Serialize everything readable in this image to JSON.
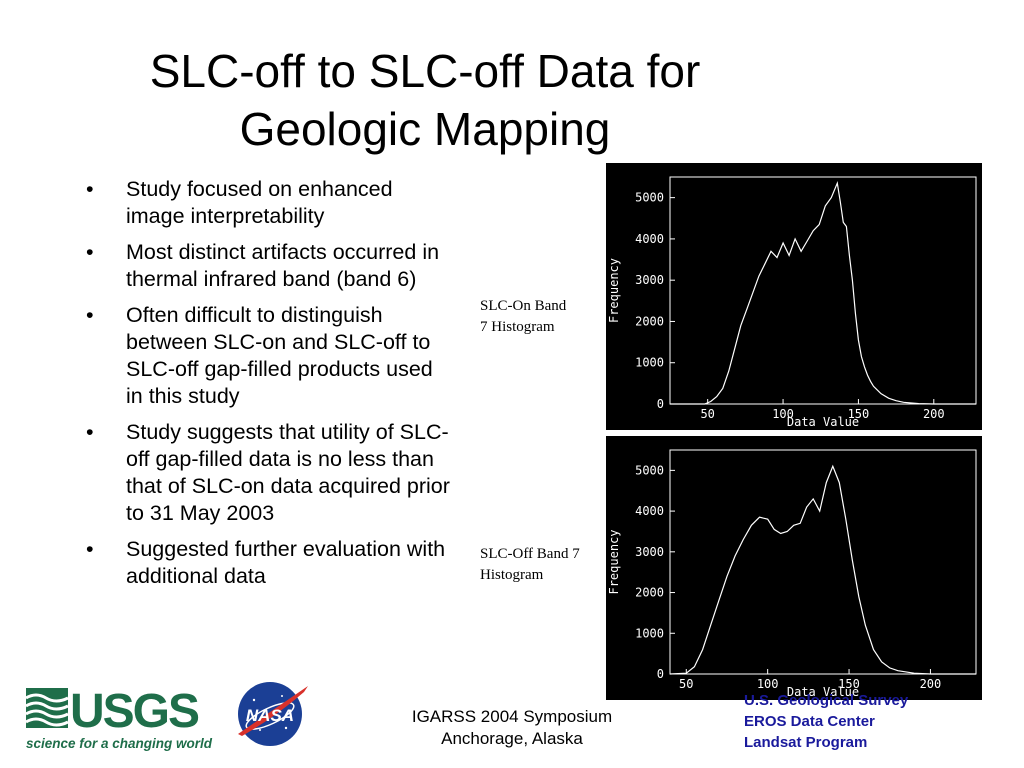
{
  "slide": {
    "title_line1": "SLC-off to SLC-off Data for",
    "title_line2": "Geologic Mapping",
    "bullets": [
      "Study focused on enhanced image interpretability",
      "Most distinct artifacts occurred in thermal infrared band (band 6)",
      "Often difficult to distinguish between SLC-on and SLC-off to SLC-off gap-filled products used in this study",
      "Study suggests that utility of SLC-off gap-filled data is no less than that of SLC-on data acquired prior to 31 May 2003",
      "Suggested further evaluation with additional data"
    ],
    "caption_top_line1": "SLC-On Band",
    "caption_top_line2": "7 Histogram",
    "caption_bottom_line1": "SLC-Off Band 7",
    "caption_bottom_line2": "Histogram",
    "footer_line1": "IGARSS 2004 Symposium",
    "footer_line2": "Anchorage, Alaska",
    "org_line1": "U.S. Geological Survey",
    "org_line2": "EROS Data Center",
    "org_line3": "Landsat Program",
    "usgs_logo_text": "USGS",
    "usgs_tagline": "science for a changing world",
    "nasa_logo_text": "NASA"
  },
  "colors": {
    "org_text": "#1a1a9c",
    "usgs_green": "#1f6e4a",
    "nasa_blue": "#1b3f95",
    "nasa_red": "#d8312b"
  },
  "chart_data": [
    {
      "type": "line",
      "xlabel": "Data Value",
      "ylabel": "Frequency",
      "xticks": [
        50,
        100,
        150,
        200
      ],
      "yticks": [
        0,
        1000,
        2000,
        3000,
        4000,
        5000
      ],
      "xlim": [
        25,
        228
      ],
      "ylim": [
        0,
        5500
      ],
      "grid": false,
      "series": [
        {
          "x": [
            25,
            40,
            48,
            52,
            56,
            60,
            64,
            68,
            72,
            76,
            80,
            84,
            88,
            92,
            96,
            100,
            104,
            108,
            112,
            116,
            120,
            124,
            128,
            132,
            136,
            138,
            140,
            142,
            144,
            146,
            148,
            150,
            152,
            154,
            156,
            158,
            160,
            165,
            170,
            175,
            180,
            190,
            200,
            210,
            220,
            228
          ],
          "y": [
            0,
            0,
            0,
            60,
            180,
            380,
            800,
            1350,
            1900,
            2300,
            2700,
            3100,
            3400,
            3700,
            3550,
            3900,
            3600,
            4000,
            3700,
            3950,
            4200,
            4350,
            4800,
            5000,
            5350,
            4900,
            4400,
            4300,
            3600,
            3000,
            2200,
            1550,
            1150,
            900,
            700,
            550,
            430,
            250,
            140,
            80,
            40,
            10,
            0,
            0,
            0,
            0
          ]
        }
      ]
    },
    {
      "type": "line",
      "xlabel": "Data Value",
      "ylabel": "Frequency",
      "xticks": [
        50,
        100,
        150,
        200
      ],
      "yticks": [
        0,
        1000,
        2000,
        3000,
        4000,
        5000
      ],
      "xlim": [
        40,
        228
      ],
      "ylim": [
        0,
        5500
      ],
      "grid": false,
      "series": [
        {
          "x": [
            40,
            50,
            55,
            60,
            65,
            70,
            75,
            80,
            85,
            90,
            95,
            100,
            104,
            108,
            112,
            116,
            120,
            124,
            128,
            132,
            136,
            140,
            144,
            148,
            152,
            156,
            160,
            165,
            170,
            175,
            180,
            190,
            200,
            210,
            228
          ],
          "y": [
            0,
            20,
            180,
            600,
            1200,
            1800,
            2400,
            2900,
            3300,
            3650,
            3850,
            3800,
            3550,
            3450,
            3500,
            3650,
            3700,
            4100,
            4300,
            4000,
            4700,
            5100,
            4700,
            3800,
            2800,
            1900,
            1200,
            600,
            300,
            150,
            80,
            20,
            0,
            0,
            0
          ]
        }
      ]
    }
  ]
}
